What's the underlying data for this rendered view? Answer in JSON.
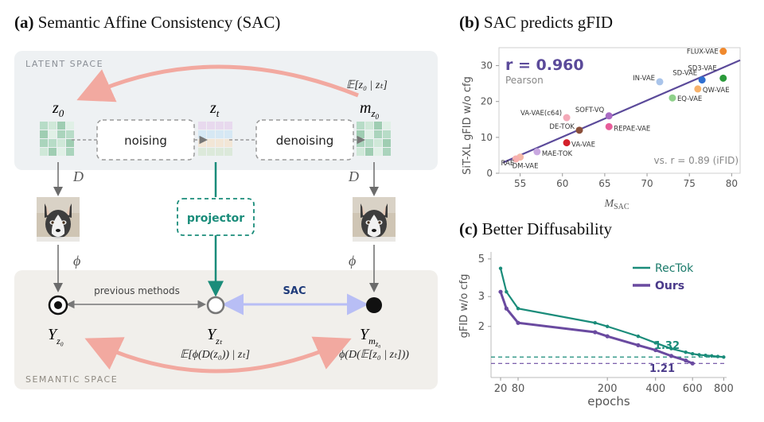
{
  "panel_a": {
    "label": "(a)",
    "title": "Semantic Affine Consistency (SAC)",
    "latent_space_label": "LATENT SPACE",
    "semantic_space_label": "SEMANTIC SPACE",
    "z0": "z",
    "z0_sub": "0",
    "zt": "z",
    "zt_sub": "t",
    "mz0": "m",
    "mz0_sub": "z",
    "mz0_subsub": "0",
    "expectation_top": "𝔼[z₀ | zₜ]",
    "noising": "noising",
    "denoising": "denoising",
    "decoder_left": "D",
    "decoder_right": "D",
    "phi_left": "ϕ",
    "phi_right": "ϕ",
    "projector": "projector",
    "previous_methods": "previous methods",
    "sac": "SAC",
    "y_left": "Y",
    "y_left_sub": "z₀",
    "y_mid": "Y",
    "y_mid_sub": "zₜ",
    "y_right": "Y",
    "y_right_sub": "m",
    "y_right_subsub": "z₀",
    "y_mid_formula": "𝔼[ϕ(D(z₀)) | zₜ]",
    "y_right_formula": "ϕ(D(𝔼[z₀ | zₜ]))",
    "colors": {
      "teal": "#1a8c7a",
      "pink": "#f2a9a0",
      "lavender": "#b8bef5",
      "navy": "#1f3b7a"
    }
  },
  "panel_b": {
    "label": "(b)",
    "title": "SAC predicts gFID",
    "r_text": "r = 0.960",
    "pearson": "Pearson",
    "note": "vs. r = 0.89 (iFID)",
    "xlabel": "M",
    "xlabel_sub": "SAC",
    "ylabel": "SiT-XL gFID w/o cfg"
  },
  "panel_c": {
    "label": "(c)",
    "title": "Better Diffusability",
    "ylabel": "gFID w/o cfg",
    "xlabel": "epochs",
    "val_rectok": "1.32",
    "val_ours": "1.21"
  },
  "chart_data": [
    {
      "type": "scatter",
      "xlim": [
        52.5,
        81
      ],
      "ylim": [
        0,
        35
      ],
      "xticks": [
        55,
        60,
        65,
        70,
        75,
        80
      ],
      "yticks": [
        0,
        10,
        20,
        30
      ],
      "grid": false,
      "fit_line": [
        [
          53,
          3
        ],
        [
          81,
          31.5
        ]
      ],
      "points": [
        {
          "label": "FLUX-VAE",
          "x": 79.0,
          "y": 34.0,
          "color": "#f0892e"
        },
        {
          "label": "SD3-VAE",
          "x": 79.0,
          "y": 26.5,
          "color": "#2a9a3a"
        },
        {
          "label": "SD-VAE",
          "x": 76.5,
          "y": 26.0,
          "color": "#2f6fd1"
        },
        {
          "label": "QW-VAE",
          "x": 76.0,
          "y": 23.5,
          "color": "#f7b26b"
        },
        {
          "label": "IN-VAE",
          "x": 71.5,
          "y": 25.5,
          "color": "#a9c4ea"
        },
        {
          "label": "EQ-VAE",
          "x": 73.0,
          "y": 21.0,
          "color": "#8fd18a"
        },
        {
          "label": "SOFT-VQ",
          "x": 65.5,
          "y": 16.0,
          "color": "#a86ac4"
        },
        {
          "label": "VA-VAE(c64)",
          "x": 60.5,
          "y": 15.5,
          "color": "#f4a9b8"
        },
        {
          "label": "DE-TOK",
          "x": 62.0,
          "y": 12.0,
          "color": "#8a4f3a"
        },
        {
          "label": "REPAE-VAE",
          "x": 65.5,
          "y": 13.0,
          "color": "#e85d9a"
        },
        {
          "label": "VA-VAE",
          "x": 60.5,
          "y": 8.5,
          "color": "#d4202a"
        },
        {
          "label": "MAE-TOK",
          "x": 57.0,
          "y": 6.0,
          "color": "#c9a8e0"
        },
        {
          "label": "DM-VAE",
          "x": 55.0,
          "y": 4.5,
          "color": "#f5b8a8"
        },
        {
          "label": "RAE",
          "x": 54.5,
          "y": 4.0,
          "color": "#f7b0b0"
        }
      ]
    },
    {
      "type": "line",
      "x_scale": "sqrt",
      "y_scale": "log",
      "xticks": [
        20,
        80,
        200,
        400,
        600,
        800
      ],
      "yticks": [
        2,
        3,
        5
      ],
      "xlim": [
        0,
        820
      ],
      "ylim": [
        1.0,
        5.5
      ],
      "legend": "top-right",
      "hlines": [
        {
          "y": 1.32,
          "color": "#1a8c7a"
        },
        {
          "y": 1.21,
          "color": "#6a4aa0"
        }
      ],
      "series": [
        {
          "name": "RecTok",
          "color": "#1a8c7a",
          "marker_interval": "dense-late",
          "x": [
            20,
            40,
            80,
            160,
            200,
            320,
            400,
            480,
            560,
            600,
            640,
            680,
            720,
            760,
            800
          ],
          "y": [
            4.4,
            3.2,
            2.55,
            2.1,
            2.0,
            1.75,
            1.6,
            1.48,
            1.41,
            1.38,
            1.36,
            1.35,
            1.34,
            1.33,
            1.32
          ]
        },
        {
          "name": "Ours",
          "color": "#6a4aa0",
          "bold": true,
          "x": [
            20,
            40,
            80,
            160,
            200,
            320,
            400,
            480,
            560,
            600
          ],
          "y": [
            3.2,
            2.55,
            2.1,
            1.85,
            1.75,
            1.55,
            1.45,
            1.34,
            1.26,
            1.21
          ]
        }
      ]
    }
  ]
}
